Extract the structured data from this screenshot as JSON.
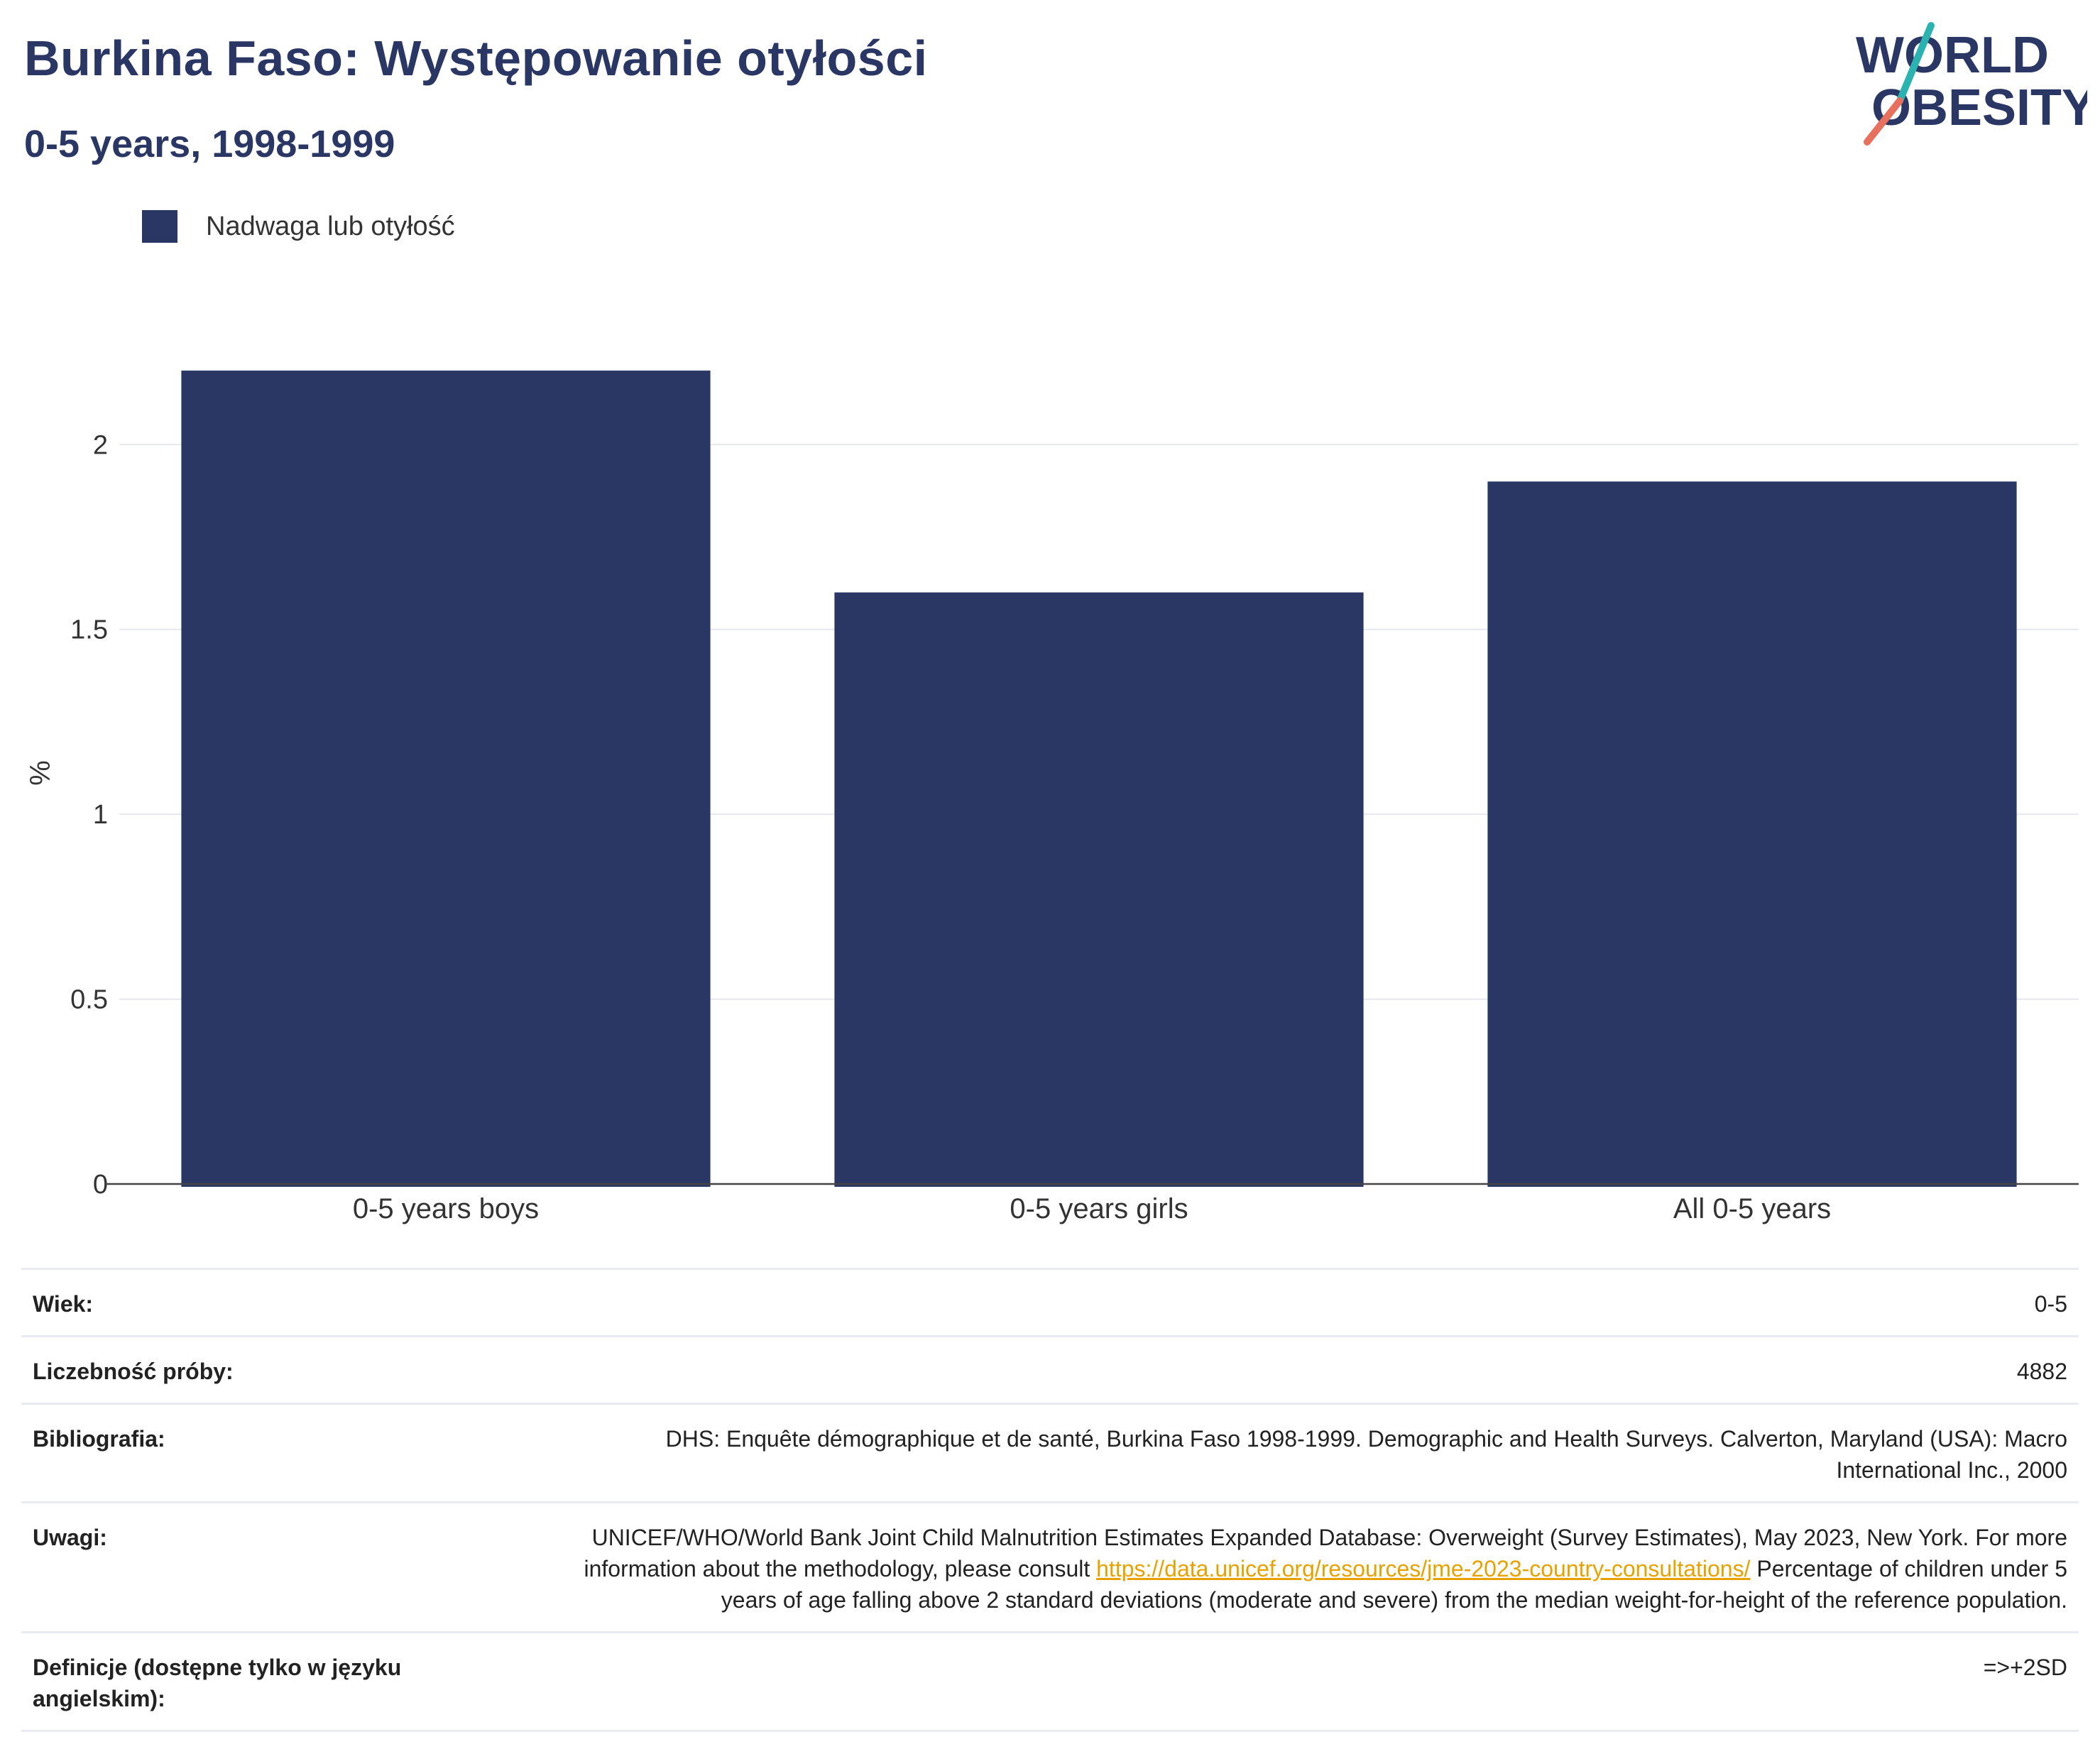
{
  "title": "Burkina Faso: Występowanie otyłości",
  "subtitle": "0-5 years, 1998-1999",
  "logo": {
    "line1": "WORLD",
    "line2": "OBESITY"
  },
  "colors": {
    "bar": "#2a3764",
    "title": "#2a3764",
    "logo_teal": "#2bb3b1",
    "logo_coral": "#e8705f",
    "link": "#e8a200"
  },
  "legend": {
    "label": "Nadwaga lub otyłość"
  },
  "chart_data": {
    "type": "bar",
    "categories": [
      "0-5 years boys",
      "0-5 years girls",
      "All 0-5 years"
    ],
    "series": [
      {
        "name": "Nadwaga lub otyłość",
        "values": [
          2.2,
          1.6,
          1.9
        ]
      }
    ],
    "ylabel": "%",
    "ylim": [
      0,
      2.3
    ],
    "yticks": [
      0,
      0.5,
      1,
      1.5,
      2
    ],
    "ytick_labels": [
      "0",
      "0.5",
      "1",
      "1.5",
      "2"
    ],
    "grid": true,
    "legend_position": "top-left"
  },
  "info": [
    {
      "key": "Wiek:",
      "value": "0-5"
    },
    {
      "key": "Liczebność próby:",
      "value": "4882"
    },
    {
      "key": "Bibliografia:",
      "value": "DHS: Enquête démographique et de santé, Burkina Faso 1998-1999. Demographic and Health Surveys. Calverton, Maryland (USA): Macro International Inc., 2000"
    },
    {
      "key": "Uwagi:",
      "value_pre": "UNICEF/WHO/World Bank Joint Child Malnutrition Estimates Expanded Database: Overweight (Survey Estimates), May 2023, New York. For more information about the methodology, please consult ",
      "link": "https://data.unicef.org/resources/jme-2023-country-consultations/",
      "value_post": " Percentage of children under 5 years of age falling above 2 standard deviations (moderate and severe) from the median weight-for-height of the reference population."
    },
    {
      "key": "Definicje (dostępne tylko w języku angielskim):",
      "value": "=>+2SD"
    }
  ]
}
